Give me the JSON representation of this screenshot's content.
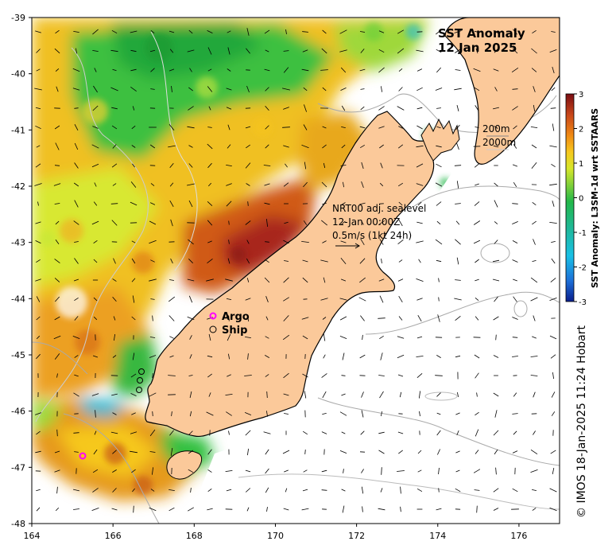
{
  "title": {
    "line1": "SST Anomaly",
    "line2": "12 Jan 2025"
  },
  "axes": {
    "x_ticks": [
      "164",
      "166",
      "168",
      "170",
      "172",
      "174",
      "176"
    ],
    "y_ticks": [
      "-39",
      "-40",
      "-41",
      "-42",
      "-43",
      "-44",
      "-45",
      "-46",
      "-47",
      "-48"
    ],
    "lon_range": [
      164,
      177
    ],
    "lat_range": [
      -48,
      -39
    ]
  },
  "colorbar": {
    "label": "SST Anomaly: L3SM-1d wrt SSTAARS",
    "ticks": [
      "3",
      "2",
      "1",
      "0",
      "-1",
      "-2",
      "-3"
    ],
    "range": [
      -3,
      3
    ],
    "colors": [
      "#0a1e8c",
      "#1d6fd8",
      "#19c0e6",
      "#1fb89a",
      "#22b84a",
      "#7fd03a",
      "#d6e62a",
      "#f6c81e",
      "#f08a14",
      "#c8461a",
      "#7a0c12"
    ]
  },
  "contour_labels": [
    "200m",
    "2000m"
  ],
  "current_annotation": {
    "line1": "NRT00 adj. sealevel",
    "line2": "12-Jan 00:00Z",
    "line3": "0.5m/s (1kt 24h)"
  },
  "legend": {
    "argo": "Argo",
    "ship": "Ship"
  },
  "credit": "© IMOS 18-Jan-2025 11:24 Hobart",
  "colors": {
    "land": "#fbc99a",
    "argo": "#ff00ff",
    "ship": "#000000",
    "contour_200": "#aaaaaa",
    "contour_2000": "#cccccc"
  }
}
